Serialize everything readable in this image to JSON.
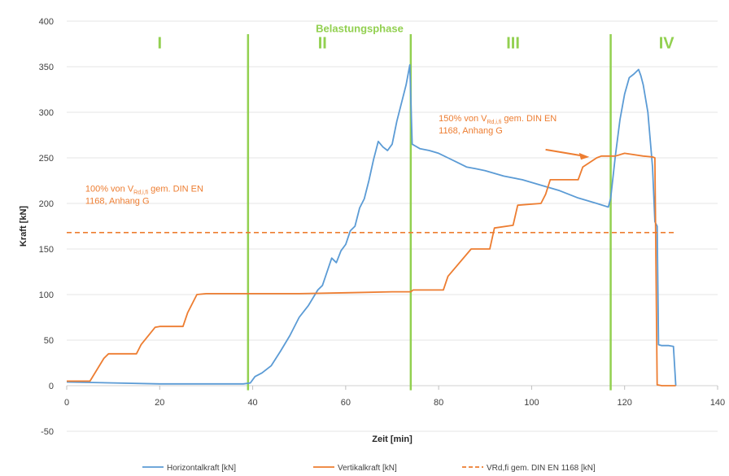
{
  "chart_data": {
    "type": "line",
    "title": "",
    "xlabel": "Zeit [min]",
    "ylabel": "Kraft [kN]",
    "xlim": [
      0,
      140
    ],
    "ylim": [
      -50,
      400
    ],
    "xticks": [
      0,
      20,
      40,
      60,
      80,
      100,
      120,
      140
    ],
    "yticks": [
      -50,
      0,
      50,
      100,
      150,
      200,
      250,
      300,
      350,
      400
    ],
    "grid": true,
    "legend_position": "bottom",
    "phase_title": "Belastungsphase",
    "phases": [
      {
        "label": "I",
        "x": 20
      },
      {
        "label": "II",
        "x": 55
      },
      {
        "label": "III",
        "x": 96
      },
      {
        "label": "IV",
        "x": 129
      }
    ],
    "phase_boundaries": [
      39,
      74,
      117
    ],
    "annotations": [
      {
        "lines": [
          "100% von V",
          "Rd,i,fi",
          " gem. DIN EN",
          "1168, Anhang G"
        ],
        "x": 4,
        "y": 213
      },
      {
        "lines": [
          "150% von V",
          "Rd,i,fi",
          " gem. DIN EN",
          "1168, Anhang G"
        ],
        "x": 80,
        "y": 290
      }
    ],
    "series": [
      {
        "name": "Horizontalkraft [kN]",
        "color": "#5b9bd5",
        "style": "solid",
        "x": [
          0,
          10,
          20,
          30,
          38,
          39.5,
          40.5,
          42,
          44,
          46,
          48,
          50,
          52,
          54,
          55,
          56,
          57,
          58,
          59,
          60,
          61,
          62,
          63,
          64,
          65,
          66,
          67,
          68,
          69,
          70,
          71,
          72,
          73,
          73.8,
          74.3,
          76,
          78,
          80,
          82,
          84,
          86,
          88,
          90,
          94,
          98,
          102,
          106,
          110,
          114,
          116.5,
          117,
          118,
          119,
          120,
          121,
          122,
          123,
          123.5,
          124,
          125,
          126,
          126.5,
          127,
          127.3,
          128,
          129.5,
          130.5,
          131
        ],
        "values": [
          4,
          3,
          2,
          2,
          2,
          3,
          10,
          14,
          22,
          38,
          55,
          75,
          88,
          105,
          110,
          125,
          140,
          135,
          148,
          155,
          170,
          175,
          195,
          205,
          225,
          248,
          268,
          262,
          258,
          265,
          290,
          310,
          330,
          352,
          265,
          260,
          258,
          255,
          250,
          245,
          240,
          238,
          236,
          230,
          226,
          220,
          214,
          206,
          200,
          196,
          206,
          252,
          292,
          320,
          338,
          342,
          347,
          340,
          330,
          300,
          240,
          180,
          175,
          45,
          44,
          44,
          43,
          0
        ]
      },
      {
        "name": "Vertikalkraft [kN]",
        "color": "#ed7d31",
        "style": "solid",
        "x": [
          0,
          4.5,
          5,
          8,
          9,
          15,
          16,
          19,
          20,
          25,
          26,
          28,
          30,
          40,
          50,
          60,
          70,
          74,
          74.5,
          81,
          82,
          87,
          88,
          91,
          92,
          96,
          97,
          102,
          103,
          104,
          105,
          110,
          111,
          114,
          115,
          118,
          120,
          124,
          126,
          126.5,
          127,
          128,
          131
        ],
        "values": [
          5,
          5,
          5,
          30,
          35,
          35,
          45,
          64,
          65,
          65,
          80,
          100,
          101,
          101,
          101,
          102,
          103,
          103,
          105,
          105,
          120,
          150,
          150,
          150,
          173,
          176,
          198,
          200,
          210,
          226,
          226,
          226,
          240,
          250,
          252,
          252,
          255,
          252,
          251,
          250,
          1,
          0,
          0
        ]
      },
      {
        "name": "VRd,fi gem. DIN EN 1168 [kN]",
        "color": "#ed7d31",
        "style": "dashed",
        "x": [
          0,
          131
        ],
        "values": [
          168,
          168
        ]
      }
    ]
  }
}
